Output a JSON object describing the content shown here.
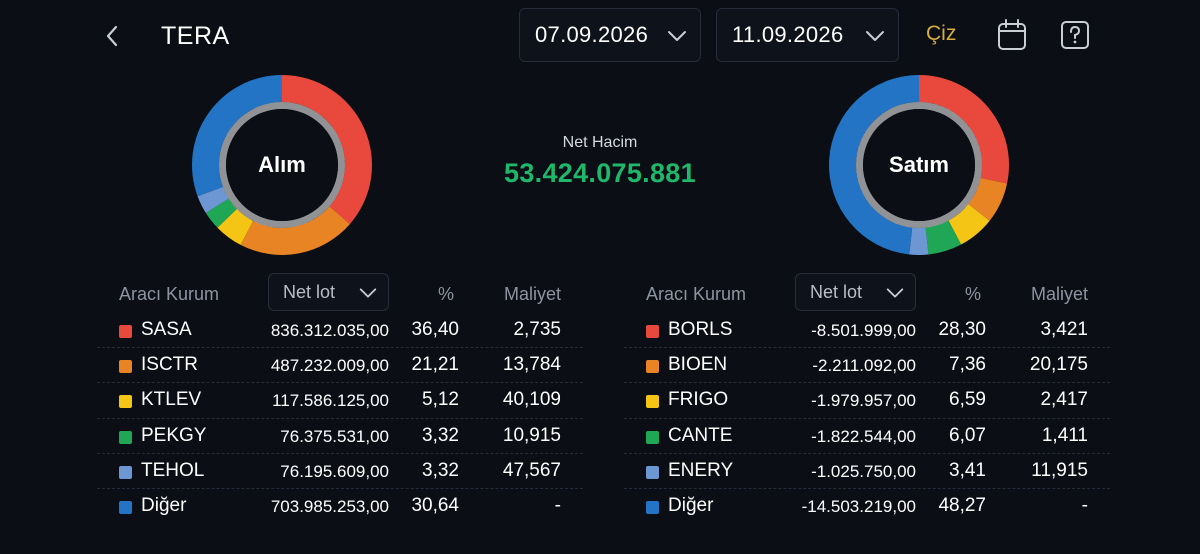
{
  "header": {
    "title": "TERA",
    "start_date": "07.09.2026",
    "end_date": "11.09.2026",
    "draw_label": "Çiz"
  },
  "summary": {
    "net_volume_label": "Net Hacim",
    "net_volume_value": "53.424.075.881",
    "net_volume_color": "#1fb86b"
  },
  "buy": {
    "donut_label": "Alım",
    "table": {
      "broker_header": "Aracı Kurum",
      "sort_value": "Net lot",
      "pct_header": "%",
      "cost_header": "Maliyet",
      "rows": [
        {
          "name": "SASA",
          "color": "#e8493c",
          "lot": "836.312.035,00",
          "pct": "36,40",
          "cost": "2,735"
        },
        {
          "name": "ISCTR",
          "color": "#e88424",
          "lot": "487.232.009,00",
          "pct": "21,21",
          "cost": "13,784"
        },
        {
          "name": "KTLEV",
          "color": "#f5c515",
          "lot": "117.586.125,00",
          "pct": "5,12",
          "cost": "40,109"
        },
        {
          "name": "PEKGY",
          "color": "#20a755",
          "lot": "76.375.531,00",
          "pct": "3,32",
          "cost": "10,915"
        },
        {
          "name": "TEHOL",
          "color": "#6c97d2",
          "lot": "76.195.609,00",
          "pct": "3,32",
          "cost": "47,567"
        },
        {
          "name": "Diğer",
          "color": "#2374c4",
          "lot": "703.985.253,00",
          "pct": "30,64",
          "cost": "-"
        }
      ]
    }
  },
  "sell": {
    "donut_label": "Satım",
    "table": {
      "broker_header": "Aracı Kurum",
      "sort_value": "Net lot",
      "pct_header": "%",
      "cost_header": "Maliyet",
      "rows": [
        {
          "name": "BORLS",
          "color": "#e8493c",
          "lot": "-8.501.999,00",
          "pct": "28,30",
          "cost": "3,421"
        },
        {
          "name": "BIOEN",
          "color": "#e88424",
          "lot": "-2.211.092,00",
          "pct": "7,36",
          "cost": "20,175"
        },
        {
          "name": "FRIGO",
          "color": "#f5c515",
          "lot": "-1.979.957,00",
          "pct": "6,59",
          "cost": "2,417"
        },
        {
          "name": "CANTE",
          "color": "#20a755",
          "lot": "-1.822.544,00",
          "pct": "6,07",
          "cost": "1,411"
        },
        {
          "name": "ENERY",
          "color": "#6c97d2",
          "lot": "-1.025.750,00",
          "pct": "3,41",
          "cost": "11,915"
        },
        {
          "name": "Diğer",
          "color": "#2374c4",
          "lot": "-14.503.219,00",
          "pct": "48,27",
          "cost": "-"
        }
      ]
    }
  },
  "icons": {
    "back": "chevron-left-icon",
    "date_dropdown": "chevron-down-icon",
    "calendar": "calendar-icon",
    "help": "question-mark-icon"
  }
}
